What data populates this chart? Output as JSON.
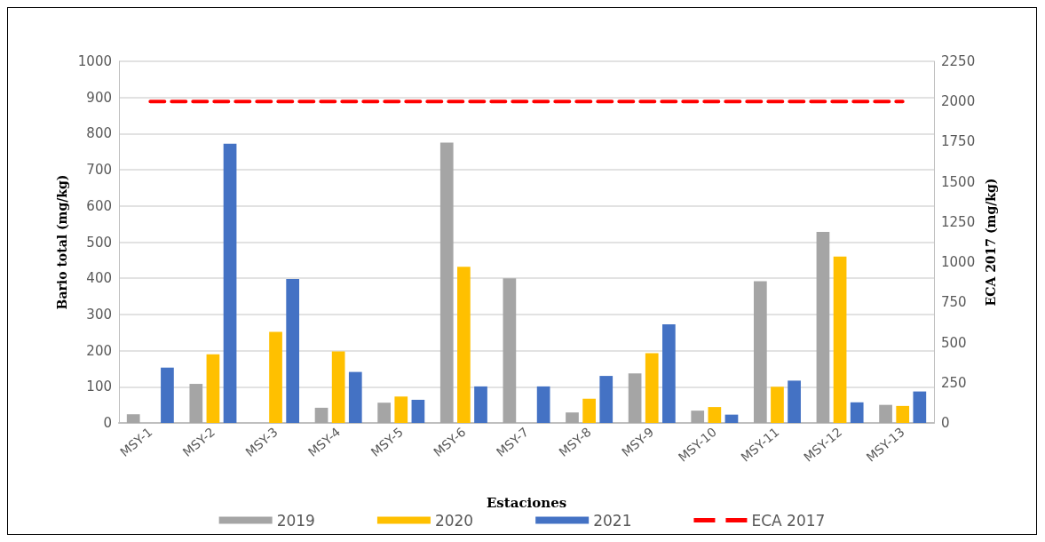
{
  "chart_data": {
    "type": "bar",
    "xlabel": "Estaciones",
    "ylabel": "Bario total (mg/kg)",
    "y2label": "ECA 2017 (mg/kg)",
    "categories": [
      "MSY-1",
      "MSY-2",
      "MSY-3",
      "MSY-4",
      "MSY-5",
      "MSY-6",
      "MSY-7",
      "MSY-8",
      "MSY-9",
      "MSY-10",
      "MSY-11",
      "MSY-12",
      "MSY-13"
    ],
    "series": [
      {
        "name": "2019",
        "color": "#a5a5a5",
        "values": [
          24,
          108,
          null,
          42,
          56,
          775,
          400,
          29,
          137,
          34,
          392,
          528,
          50
        ]
      },
      {
        "name": "2020",
        "color": "#ffc000",
        "values": [
          null,
          190,
          252,
          198,
          73,
          432,
          null,
          67,
          193,
          44,
          100,
          460,
          47
        ]
      },
      {
        "name": "2021",
        "color": "#4472c4",
        "values": [
          153,
          772,
          398,
          141,
          64,
          101,
          101,
          130,
          273,
          23,
          117,
          57,
          87
        ]
      },
      {
        "name": "ECA 2017",
        "type": "line",
        "axis": "y2",
        "color": "#ff0000",
        "line_style": "dashed",
        "marker": "none",
        "values": [
          2000,
          2000,
          2000,
          2000,
          2000,
          2000,
          2000,
          2000,
          2000,
          2000,
          2000,
          2000,
          2000
        ]
      }
    ],
    "ylim": [
      0,
      1000
    ],
    "yticks": [
      0,
      100,
      200,
      300,
      400,
      500,
      600,
      700,
      800,
      900,
      1000
    ],
    "y2lim": [
      0,
      2250
    ],
    "y2ticks": [
      0,
      250,
      500,
      750,
      1000,
      1250,
      1500,
      1750,
      2000,
      2250
    ],
    "grid": "y",
    "legend": "bottom"
  }
}
